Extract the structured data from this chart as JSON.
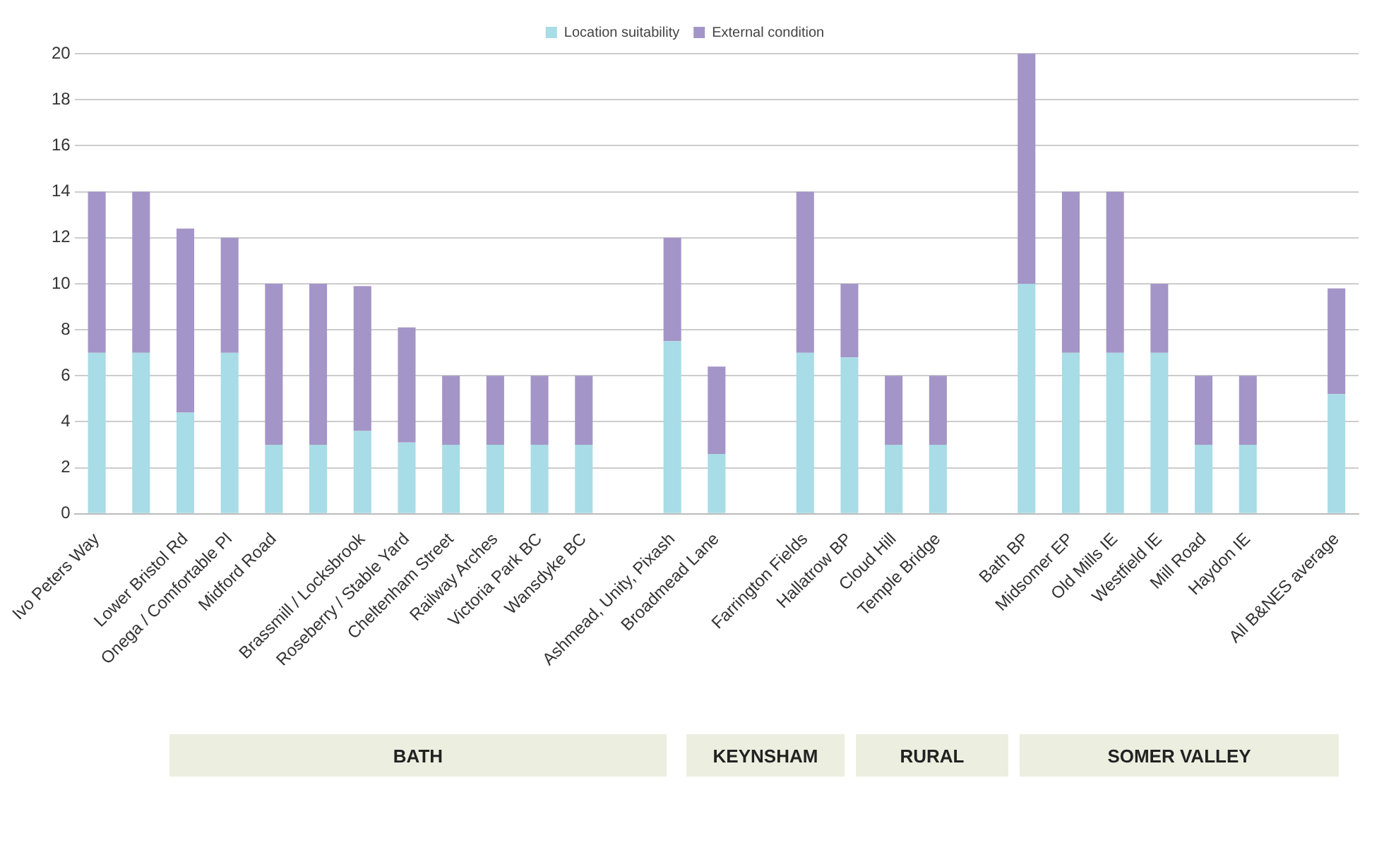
{
  "chart_data": {
    "type": "bar",
    "stacked": true,
    "categories": [
      "Ivo Peters Way",
      null,
      "Lower Bristol Rd",
      "Onega / Comfortable Pl",
      "Midford Road",
      null,
      "Brassmill / Locksbrook",
      "Roseberry / Stable Yard",
      "Cheltenham Street",
      "Railway Arches",
      "Victoria Park BC",
      "Wansdyke BC",
      null,
      "Ashmead, Unity, Pixash",
      "Broadmead Lane",
      null,
      "Farrington Fields",
      "Hallatrow BP",
      "Cloud Hill",
      "Temple Bridge",
      null,
      "Bath BP",
      "Midsomer EP",
      "Old Mills IE",
      "Westfield IE",
      "Mill Road",
      "Haydon IE",
      null,
      "All B&NES average"
    ],
    "series": [
      {
        "name": "Location suitability",
        "color": "#a8dce6",
        "values": [
          7,
          7,
          4.4,
          7,
          3,
          3,
          3.6,
          3.1,
          3,
          3,
          3,
          3,
          null,
          7.5,
          2.6,
          null,
          7,
          6.8,
          3,
          3,
          null,
          10,
          7,
          7,
          7,
          3,
          3,
          null,
          5.2
        ]
      },
      {
        "name": "External condition",
        "color": "#a495c8",
        "values": [
          7,
          7,
          8,
          5,
          7,
          7,
          6.3,
          5,
          3,
          3,
          3,
          3,
          null,
          4.5,
          3.8,
          null,
          7,
          3.2,
          3,
          3,
          null,
          10,
          7,
          7,
          3,
          3,
          3,
          null,
          4.6
        ]
      }
    ],
    "ylim": [
      0,
      20
    ],
    "yticks": [
      0,
      2,
      4,
      6,
      8,
      10,
      12,
      14,
      16,
      18,
      20
    ],
    "grid": "y",
    "legend": "top",
    "annotations": [
      "BATH",
      "KEYNSHAM",
      "RURAL",
      "SOMER VALLEY"
    ]
  }
}
